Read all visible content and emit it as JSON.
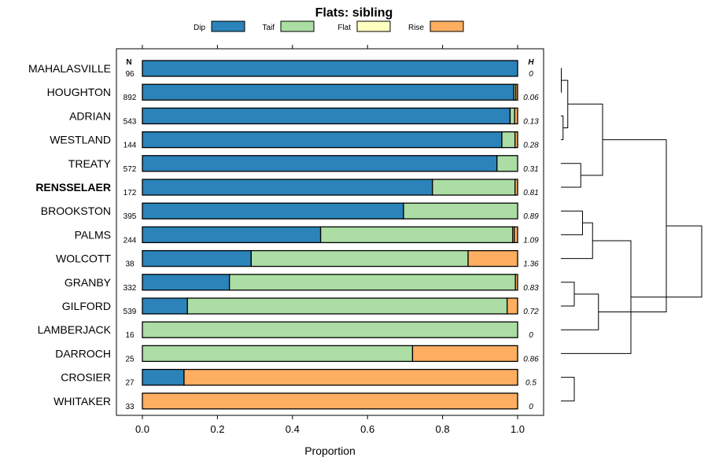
{
  "chart_data": {
    "type": "bar",
    "stacked": true,
    "orientation": "horizontal",
    "title": "Flats: sibling",
    "xlabel": "Proportion",
    "xlim": [
      -0.07,
      1.07
    ],
    "xticks": [
      "0.0",
      "0.2",
      "0.4",
      "0.6",
      "0.8",
      "1.0"
    ],
    "n_header": "N",
    "h_header": "H",
    "legend": [
      {
        "name": "Dip",
        "color": "#2b83ba"
      },
      {
        "name": "Taif",
        "color": "#abdda4"
      },
      {
        "name": "Flat",
        "color": "#ffffbf"
      },
      {
        "name": "Rise",
        "color": "#fdae61"
      }
    ],
    "rows": [
      {
        "label": "MAHALASVILLE",
        "bold": false,
        "n": "96",
        "h": "0",
        "values": [
          1.0,
          0.0,
          0.0,
          0.0
        ]
      },
      {
        "label": "HOUGHTON",
        "bold": false,
        "n": "892",
        "h": "0.06",
        "values": [
          0.99,
          0.005,
          0.0,
          0.005
        ]
      },
      {
        "label": "ADRIAN",
        "bold": false,
        "n": "543",
        "h": "0.13",
        "values": [
          0.98,
          0.012,
          0.0,
          0.008
        ]
      },
      {
        "label": "WESTLAND",
        "bold": false,
        "n": "144",
        "h": "0.28",
        "values": [
          0.958,
          0.035,
          0.0,
          0.007
        ]
      },
      {
        "label": "TREATY",
        "bold": false,
        "n": "572",
        "h": "0.31",
        "values": [
          0.945,
          0.055,
          0.0,
          0.0
        ]
      },
      {
        "label": "RENSSELAER",
        "bold": true,
        "n": "172",
        "h": "0.81",
        "values": [
          0.773,
          0.22,
          0.0,
          0.007
        ]
      },
      {
        "label": "BROOKSTON",
        "bold": false,
        "n": "395",
        "h": "0.89",
        "values": [
          0.696,
          0.304,
          0.0,
          0.0
        ]
      },
      {
        "label": "PALMS",
        "bold": false,
        "n": "244",
        "h": "1.09",
        "values": [
          0.475,
          0.512,
          0.004,
          0.009
        ]
      },
      {
        "label": "WOLCOTT",
        "bold": false,
        "n": "38",
        "h": "1.36",
        "values": [
          0.29,
          0.578,
          0.0,
          0.132
        ]
      },
      {
        "label": "GRANBY",
        "bold": false,
        "n": "332",
        "h": "0.83",
        "values": [
          0.232,
          0.762,
          0.0,
          0.006
        ]
      },
      {
        "label": "GILFORD",
        "bold": false,
        "n": "539",
        "h": "0.72",
        "values": [
          0.12,
          0.852,
          0.0,
          0.028
        ]
      },
      {
        "label": "LAMBERJACK",
        "bold": false,
        "n": "16",
        "h": "0",
        "values": [
          0.0,
          1.0,
          0.0,
          0.0
        ]
      },
      {
        "label": "DARROCH",
        "bold": false,
        "n": "25",
        "h": "0.86",
        "values": [
          0.0,
          0.72,
          0.0,
          0.28
        ]
      },
      {
        "label": "CROSIER",
        "bold": false,
        "n": "27",
        "h": "0.5",
        "values": [
          0.111,
          0.0,
          0.0,
          0.889
        ]
      },
      {
        "label": "WHITAKER",
        "bold": false,
        "n": "33",
        "h": "0",
        "values": [
          0.0,
          0.0,
          0.0,
          1.0
        ]
      }
    ],
    "dendrogram": {
      "merges": [
        [
          0,
          1,
          0.02
        ],
        [
          2,
          3,
          0.05
        ],
        [
          -1,
          -2,
          0.13
        ],
        [
          4,
          5,
          0.35
        ],
        [
          -3,
          -4,
          0.72
        ],
        [
          6,
          7,
          0.38
        ],
        [
          9,
          10,
          0.24
        ],
        [
          -6,
          8,
          0.55
        ],
        [
          -7,
          11,
          0.65
        ],
        [
          -8,
          12,
          1.2
        ],
        [
          -5,
          -9,
          1.8
        ],
        [
          13,
          14,
          0.24
        ],
        [
          -10,
          -11,
          2.4
        ]
      ],
      "max_height": 2.4
    }
  }
}
